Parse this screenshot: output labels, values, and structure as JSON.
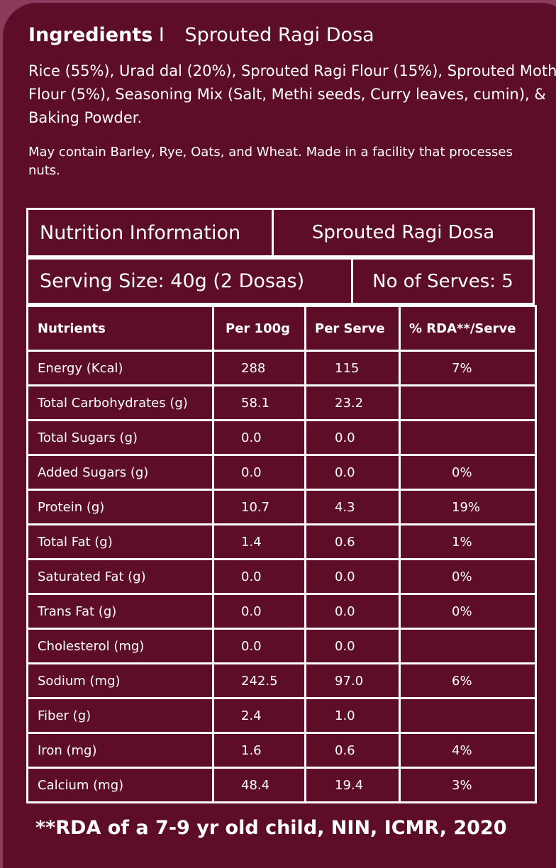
{
  "ingredients": {
    "label": "Ingredients",
    "separator": "I",
    "product": "Sprouted Ragi Dosa",
    "list": "Rice (55%), Urad dal (20%), Sprouted Ragi Flour (15%), Sprouted Moth Flour (5%), Seasoning Mix (Salt, Methi seeds, Curry leaves, cumin), & Baking Powder.",
    "allergen": "May contain Barley, Rye, Oats, and Wheat. Made in a facility that processes nuts."
  },
  "nutrition": {
    "title": "Nutrition Information",
    "product": "Sprouted Ragi Dosa",
    "serving_size": "Serving Size: 40g (2 Dosas)",
    "serves": "No of Serves: 5",
    "headers": [
      "Nutrients",
      "Per 100g",
      "Per Serve",
      "% RDA**/Serve"
    ],
    "rows": [
      {
        "nutrient": "Energy (Kcal)",
        "per100": "288",
        "serve": "115",
        "rda": "7%"
      },
      {
        "nutrient": "Total Carbohydrates (g)",
        "per100": "58.1",
        "serve": "23.2",
        "rda": ""
      },
      {
        "nutrient": "Total Sugars (g)",
        "per100": "0.0",
        "serve": "0.0",
        "rda": ""
      },
      {
        "nutrient": "Added Sugars (g)",
        "per100": "0.0",
        "serve": "0.0",
        "rda": "0%"
      },
      {
        "nutrient": "Protein (g)",
        "per100": "10.7",
        "serve": "4.3",
        "rda": "19%"
      },
      {
        "nutrient": "Total Fat (g)",
        "per100": "1.4",
        "serve": "0.6",
        "rda": "1%"
      },
      {
        "nutrient": "Saturated Fat (g)",
        "per100": "0.0",
        "serve": "0.0",
        "rda": "0%"
      },
      {
        "nutrient": "Trans Fat (g)",
        "per100": "0.0",
        "serve": "0.0",
        "rda": "0%"
      },
      {
        "nutrient": "Cholesterol (mg)",
        "per100": "0.0",
        "serve": "0.0",
        "rda": ""
      },
      {
        "nutrient": "Sodium (mg)",
        "per100": "242.5",
        "serve": "97.0",
        "rda": "6%"
      },
      {
        "nutrient": "Fiber (g)",
        "per100": "2.4",
        "serve": "1.0",
        "rda": ""
      },
      {
        "nutrient": "Iron (mg)",
        "per100": "1.6",
        "serve": "0.6",
        "rda": "4%"
      },
      {
        "nutrient": "Calcium (mg)",
        "per100": "48.4",
        "serve": "19.4",
        "rda": "3%"
      }
    ]
  },
  "footnote": "**RDA of a 7-9 yr old child, NIN, ICMR, 2020",
  "colors": {
    "panel": "#5d0d28",
    "background": "#8a3a5a",
    "text": "#ffffff"
  }
}
